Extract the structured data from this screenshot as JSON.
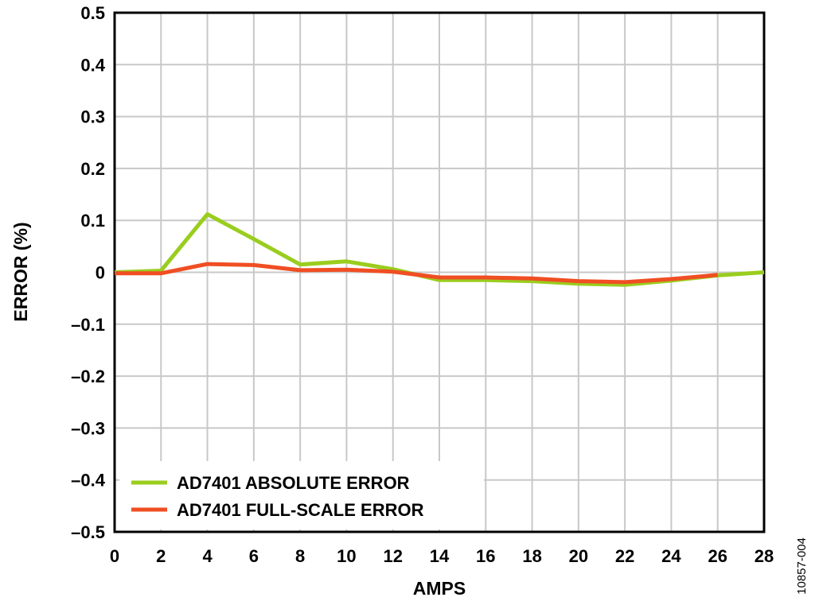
{
  "chart_data": {
    "type": "line",
    "xlabel": "AMPS",
    "ylabel": "ERROR (%)",
    "x_ticks": [
      "0",
      "2",
      "4",
      "6",
      "8",
      "10",
      "12",
      "14",
      "16",
      "18",
      "20",
      "22",
      "24",
      "26",
      "28"
    ],
    "y_ticks": [
      "0.5",
      "0.4",
      "0.3",
      "0.2",
      "0.1",
      "0",
      "–0.1",
      "–0.2",
      "–0.3",
      "–0.4",
      "–0.5"
    ],
    "xlim": [
      0,
      28
    ],
    "ylim": [
      -0.5,
      0.5
    ],
    "grid": true,
    "legend_position": "bottom-left",
    "series": [
      {
        "name": "AD7401 ABSOLUTE ERROR",
        "color": "#9acd1e",
        "x": [
          0,
          2,
          4,
          6,
          8,
          10,
          12,
          14,
          16,
          18,
          20,
          22,
          24,
          26,
          28
        ],
        "y": [
          0.0,
          0.003,
          0.112,
          0.064,
          0.015,
          0.021,
          0.006,
          -0.015,
          -0.015,
          -0.017,
          -0.022,
          -0.024,
          -0.016,
          -0.006,
          0.0
        ]
      },
      {
        "name": "AD7401 FULL-SCALE ERROR",
        "color": "#f04e23",
        "x": [
          0,
          2,
          4,
          6,
          8,
          10,
          12,
          14,
          16,
          18,
          20,
          22,
          24,
          26
        ],
        "y": [
          -0.002,
          -0.002,
          0.016,
          0.014,
          0.004,
          0.005,
          0.001,
          -0.01,
          -0.01,
          -0.012,
          -0.017,
          -0.019,
          -0.013,
          -0.005
        ]
      }
    ]
  },
  "figure_id": "10857-004"
}
